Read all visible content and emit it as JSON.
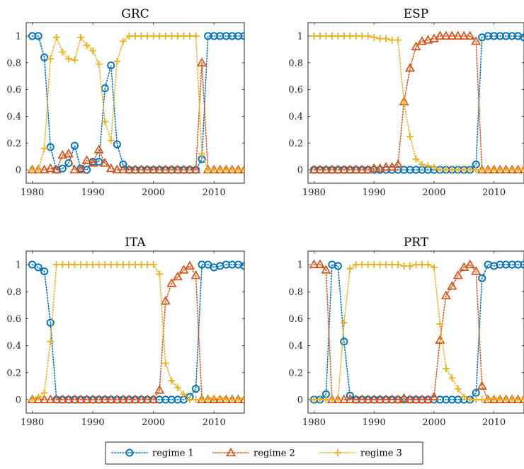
{
  "chart_data": [
    {
      "type": "line",
      "title": "GRC",
      "xlabel": "",
      "ylabel": "",
      "xlim": [
        1979,
        2015
      ],
      "ylim": [
        -0.1,
        1.1
      ],
      "xticks": [
        1980,
        1990,
        2000,
        2010
      ],
      "yticks": [
        0,
        0.2,
        0.4,
        0.6,
        0.8,
        1
      ],
      "ytick_labels": [
        "0",
        "0.2",
        "0.4",
        "0.6",
        "0.8",
        "1"
      ],
      "x": [
        1980,
        1981,
        1982,
        1983,
        1984,
        1985,
        1986,
        1987,
        1988,
        1989,
        1990,
        1991,
        1992,
        1993,
        1994,
        1995,
        1996,
        1997,
        1998,
        1999,
        2000,
        2001,
        2002,
        2003,
        2004,
        2005,
        2006,
        2007,
        2008,
        2009,
        2010,
        2011,
        2012,
        2013,
        2014,
        2015
      ],
      "series": [
        {
          "name": "regime 1",
          "values": [
            1,
            1,
            0.84,
            0.17,
            0,
            0.01,
            0.05,
            0.18,
            0.01,
            0,
            0.06,
            0.06,
            0.61,
            0.78,
            0.19,
            0.04,
            0,
            0,
            0,
            0,
            0,
            0,
            0,
            0,
            0,
            0,
            0,
            0,
            0.08,
            1,
            1,
            1,
            1,
            1,
            1,
            1
          ]
        },
        {
          "name": "regime 2",
          "values": [
            0,
            0,
            0,
            0.01,
            0,
            0.11,
            0.12,
            0,
            0,
            0.07,
            0.05,
            0.15,
            0.05,
            0.01,
            0,
            0,
            0,
            0,
            0,
            0,
            0,
            0,
            0,
            0,
            0,
            0,
            0,
            0,
            0.8,
            0,
            0,
            0,
            0,
            0,
            0,
            0
          ]
        },
        {
          "name": "regime 3",
          "values": [
            0,
            0,
            0.16,
            0.83,
            0.99,
            0.88,
            0.83,
            0.82,
            0.99,
            0.93,
            0.89,
            0.79,
            0.36,
            0.22,
            0.81,
            0.96,
            1,
            1,
            1,
            1,
            1,
            1,
            1,
            1,
            1,
            1,
            1,
            1,
            0.12,
            0,
            0,
            0,
            0,
            0,
            0,
            0
          ]
        }
      ]
    },
    {
      "type": "line",
      "title": "ESP",
      "xlabel": "",
      "ylabel": "",
      "xlim": [
        1979,
        2015
      ],
      "ylim": [
        -0.1,
        1.1
      ],
      "xticks": [
        1980,
        1990,
        2000,
        2010
      ],
      "yticks": [
        0,
        0.2,
        0.4,
        0.6,
        0.8,
        1
      ],
      "ytick_labels": [
        "0",
        "0.2",
        "0.4",
        "0.6",
        "0.8",
        "1"
      ],
      "x": [
        1980,
        1981,
        1982,
        1983,
        1984,
        1985,
        1986,
        1987,
        1988,
        1989,
        1990,
        1991,
        1992,
        1993,
        1994,
        1995,
        1996,
        1997,
        1998,
        1999,
        2000,
        2001,
        2002,
        2003,
        2004,
        2005,
        2006,
        2007,
        2008,
        2009,
        2010,
        2011,
        2012,
        2013,
        2014,
        2015
      ],
      "series": [
        {
          "name": "regime 1",
          "values": [
            0,
            0,
            0,
            0,
            0,
            0,
            0,
            0,
            0,
            0,
            0,
            0,
            0,
            0,
            0,
            0,
            0,
            0,
            0,
            0,
            0,
            0,
            0,
            0,
            0,
            0,
            0,
            0.04,
            0.99,
            1,
            1,
            1,
            1,
            1,
            1,
            0.99
          ]
        },
        {
          "name": "regime 2",
          "values": [
            0,
            0,
            0,
            0,
            0,
            0,
            0,
            0,
            0,
            0,
            0.01,
            0.01,
            0.02,
            0.02,
            0.04,
            0.51,
            0.76,
            0.92,
            0.96,
            0.97,
            0.98,
            1,
            1,
            1,
            1,
            1,
            1,
            0.96,
            0,
            0,
            0,
            0,
            0,
            0,
            0,
            0
          ]
        },
        {
          "name": "regime 3",
          "values": [
            1,
            1,
            1,
            1,
            1,
            1,
            1,
            1,
            1,
            1,
            0.99,
            0.98,
            0.98,
            0.97,
            0.97,
            0.5,
            0.25,
            0.08,
            0.04,
            0.03,
            0.02,
            0,
            0,
            0,
            0,
            0,
            0,
            0,
            0,
            0,
            0,
            0,
            0,
            0,
            0,
            0
          ]
        }
      ]
    },
    {
      "type": "line",
      "title": "ITA",
      "xlabel": "",
      "ylabel": "",
      "xlim": [
        1979,
        2015
      ],
      "ylim": [
        -0.1,
        1.1
      ],
      "xticks": [
        1980,
        1990,
        2000,
        2010
      ],
      "yticks": [
        0,
        0.2,
        0.4,
        0.6,
        0.8,
        1
      ],
      "ytick_labels": [
        "0",
        "0.2",
        "0.4",
        "0.6",
        "0.8",
        "1"
      ],
      "x": [
        1980,
        1981,
        1982,
        1983,
        1984,
        1985,
        1986,
        1987,
        1988,
        1989,
        1990,
        1991,
        1992,
        1993,
        1994,
        1995,
        1996,
        1997,
        1998,
        1999,
        2000,
        2001,
        2002,
        2003,
        2004,
        2005,
        2006,
        2007,
        2008,
        2009,
        2010,
        2011,
        2012,
        2013,
        2014,
        2015
      ],
      "series": [
        {
          "name": "regime 1",
          "values": [
            1,
            0.98,
            0.95,
            0.57,
            0,
            0,
            0,
            0,
            0,
            0,
            0,
            0,
            0,
            0,
            0,
            0,
            0,
            0,
            0,
            0,
            0,
            0,
            0,
            0,
            0,
            0,
            0.02,
            0.08,
            1,
            1,
            0.98,
            0.99,
            1,
            1,
            1,
            0.99
          ]
        },
        {
          "name": "regime 2",
          "values": [
            0,
            0,
            0,
            0,
            0,
            0,
            0,
            0,
            0,
            0,
            0,
            0,
            0,
            0,
            0,
            0,
            0,
            0,
            0,
            0,
            0,
            0.07,
            0.73,
            0.86,
            0.91,
            0.96,
            0.99,
            0.92,
            0,
            0,
            0,
            0,
            0,
            0,
            0,
            0
          ]
        },
        {
          "name": "regime 3",
          "values": [
            0,
            0.02,
            0.05,
            0.43,
            1,
            1,
            1,
            1,
            1,
            1,
            1,
            1,
            1,
            1,
            1,
            1,
            1,
            1,
            1,
            1,
            1,
            0.93,
            0.27,
            0.14,
            0.09,
            0.04,
            0,
            0,
            0,
            0,
            0.01,
            0.01,
            0,
            0,
            0,
            0.01
          ]
        }
      ]
    },
    {
      "type": "line",
      "title": "PRT",
      "xlabel": "",
      "ylabel": "",
      "xlim": [
        1979,
        2015
      ],
      "ylim": [
        -0.1,
        1.1
      ],
      "xticks": [
        1980,
        1990,
        2000,
        2010
      ],
      "yticks": [
        0,
        0.2,
        0.4,
        0.6,
        0.8,
        1
      ],
      "ytick_labels": [
        "0",
        "0.2",
        "0.4",
        "0.6",
        "0.8",
        "1"
      ],
      "x": [
        1980,
        1981,
        1982,
        1983,
        1984,
        1985,
        1986,
        1987,
        1988,
        1989,
        1990,
        1991,
        1992,
        1993,
        1994,
        1995,
        1996,
        1997,
        1998,
        1999,
        2000,
        2001,
        2002,
        2003,
        2004,
        2005,
        2006,
        2007,
        2008,
        2009,
        2010,
        2011,
        2012,
        2013,
        2014,
        2015
      ],
      "series": [
        {
          "name": "regime 1",
          "values": [
            0,
            0,
            0.04,
            1,
            0.99,
            0.43,
            0.03,
            0,
            0,
            0,
            0,
            0,
            0,
            0,
            0,
            0,
            0,
            0,
            0,
            0,
            0,
            0,
            0,
            0,
            0,
            0,
            0,
            0.05,
            0.9,
            1,
            0.99,
            1,
            1,
            1,
            1,
            1
          ]
        },
        {
          "name": "regime 2",
          "values": [
            1,
            1,
            0.96,
            0,
            0,
            0,
            0,
            0,
            0,
            0,
            0,
            0,
            0,
            0,
            0,
            0.01,
            0,
            0,
            0,
            0,
            0.02,
            0.44,
            0.77,
            0.84,
            0.92,
            0.98,
            1,
            0.95,
            0.1,
            0,
            0,
            0,
            0,
            0,
            0,
            0
          ]
        },
        {
          "name": "regime 3",
          "values": [
            0,
            0,
            0,
            0,
            0,
            0.57,
            0.97,
            1,
            1,
            1,
            1,
            1,
            1,
            1,
            1,
            0.99,
            0.99,
            1,
            1,
            1,
            0.98,
            0.56,
            0.23,
            0.16,
            0.08,
            0.02,
            0,
            0,
            0,
            0,
            0.01,
            0,
            0,
            0,
            0,
            0
          ]
        }
      ]
    }
  ],
  "legend": {
    "placement": "bottom-center",
    "entries": [
      {
        "label": "regime 1",
        "color": "#0072BD",
        "marker": "circle"
      },
      {
        "label": "regime 2",
        "color": "#D95319",
        "marker": "triangle"
      },
      {
        "label": "regime 3",
        "color": "#EDB120",
        "marker": "plus"
      }
    ]
  },
  "colors": {
    "regime 1": "#0072BD",
    "regime 2": "#D95319",
    "regime 3": "#EDB120"
  }
}
